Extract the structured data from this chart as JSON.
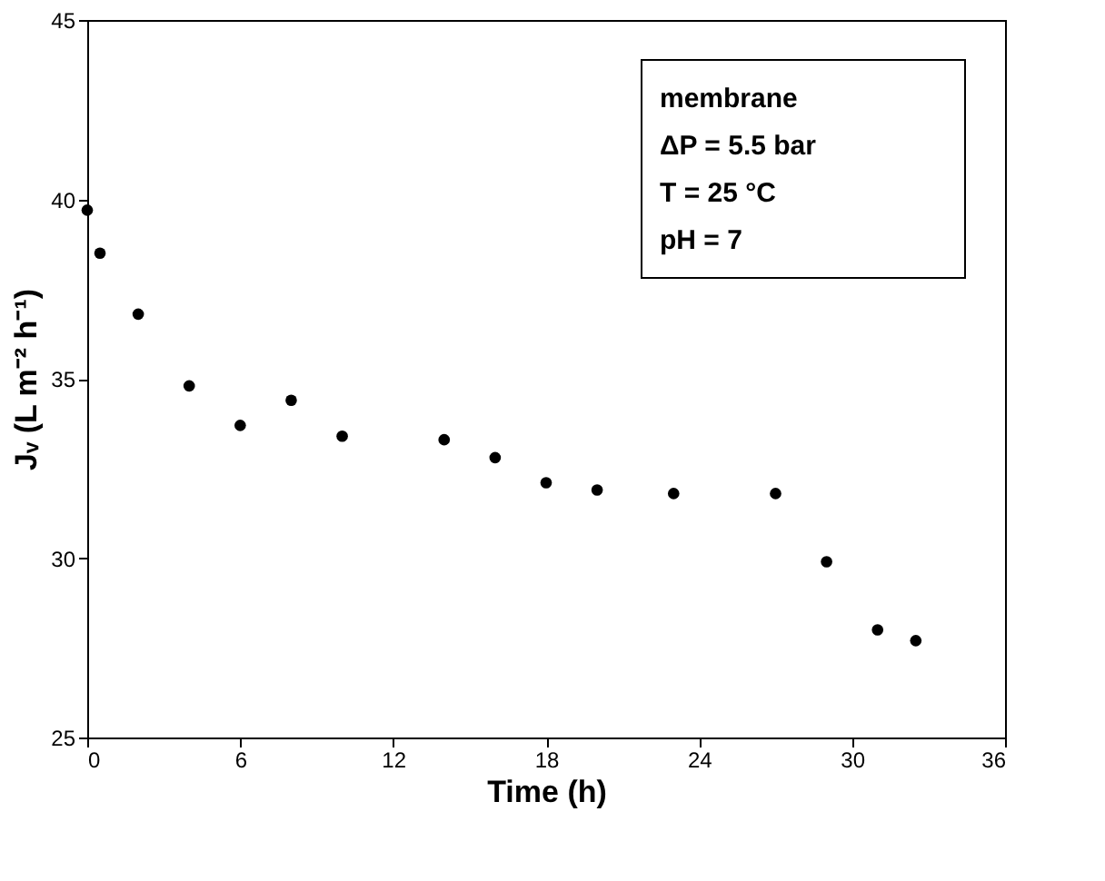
{
  "chart_data": {
    "type": "scatter",
    "xlabel": "Time (h)",
    "ylabel": "Jᵥ (L m⁻² h⁻¹)",
    "x": [
      0,
      0.5,
      2,
      4,
      6,
      8,
      10,
      14,
      16,
      18,
      20,
      23,
      27,
      29,
      31,
      32.5
    ],
    "series": [
      {
        "color": "#000000",
        "values": [
          39.7,
          38.5,
          36.8,
          34.8,
          33.7,
          34.4,
          33.4,
          33.3,
          32.8,
          32.1,
          31.9,
          31.8,
          31.8,
          29.9,
          28.0,
          27.7
        ]
      }
    ],
    "xlim": [
      0,
      36
    ],
    "xticks": [
      0,
      6,
      12,
      18,
      24,
      30,
      36
    ],
    "ylim": [
      25,
      45
    ],
    "yticks": [
      25,
      30,
      35,
      40,
      45
    ],
    "grid": false,
    "marker": "circle",
    "annotations": [
      "membrane",
      "ΔP = 5.5 bar",
      "T = 25 °C",
      "pH = 7"
    ]
  }
}
